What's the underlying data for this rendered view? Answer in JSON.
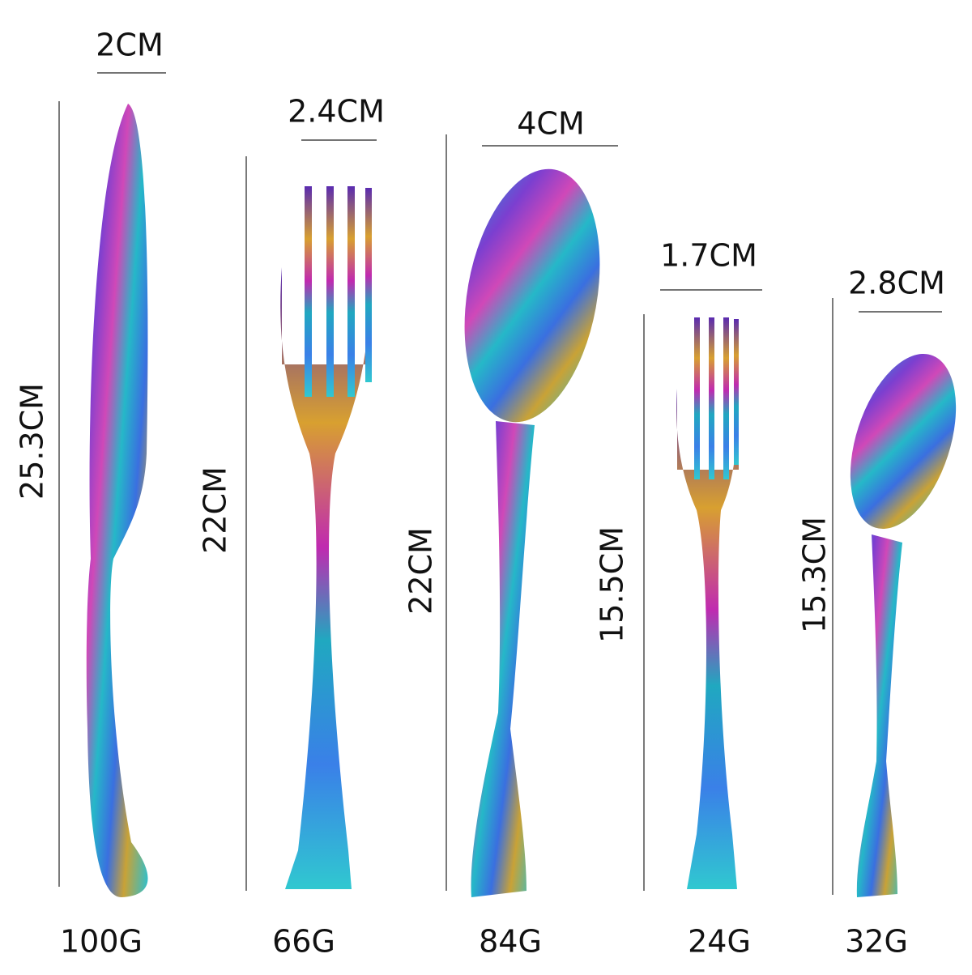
{
  "items": [
    {
      "width": "2CM",
      "length": "25.3CM",
      "weight": "100G"
    },
    {
      "width": "2.4CM",
      "length": "22CM",
      "weight": "66G"
    },
    {
      "width": "4CM",
      "length": "22CM",
      "weight": "84G"
    },
    {
      "width": "1.7CM",
      "length": "15.5CM",
      "weight": "24G"
    },
    {
      "width": "2.8CM",
      "length": "15.3CM",
      "weight": "32G"
    }
  ]
}
